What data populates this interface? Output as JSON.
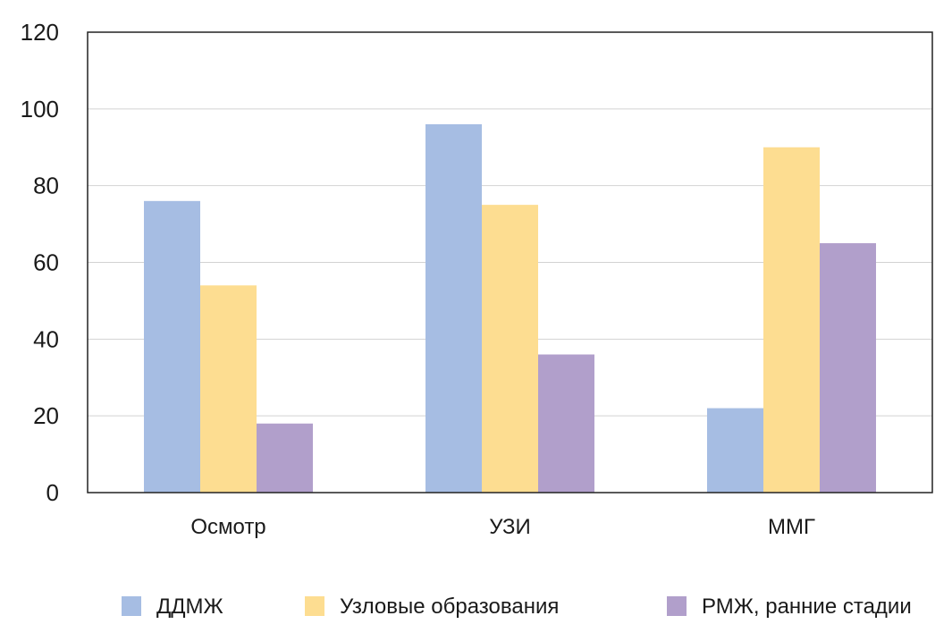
{
  "chart_data": {
    "type": "bar",
    "title": "",
    "xlabel": "",
    "ylabel": "",
    "categories": [
      "Осмотр",
      "УЗИ",
      "ММГ"
    ],
    "series": [
      {
        "name": "ДДМЖ",
        "color": "#a6bde3",
        "values": [
          76,
          96,
          22
        ]
      },
      {
        "name": "Узловые образования",
        "color": "#fddd91",
        "values": [
          54,
          75,
          90
        ]
      },
      {
        "name": "РМЖ, ранние стадии",
        "color": "#b19fcb",
        "values": [
          18,
          36,
          65
        ]
      }
    ],
    "ylim": [
      0,
      120
    ],
    "yticks": [
      0,
      20,
      40,
      60,
      80,
      100,
      120
    ],
    "grid": true,
    "legend_position": "bottom"
  }
}
